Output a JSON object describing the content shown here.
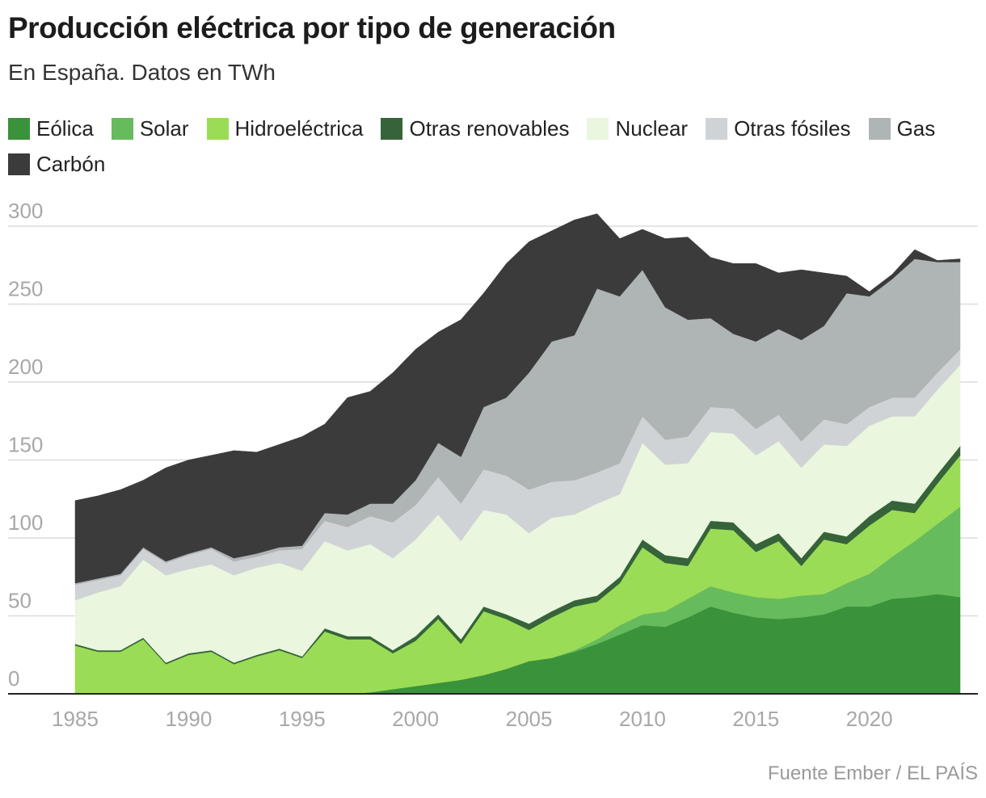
{
  "chart_data": {
    "type": "stacked-area",
    "title": "Producción eléctrica por tipo de generación",
    "subtitle": "En España. Datos en TWh",
    "source": "Fuente Ember / EL PAÍS",
    "x": [
      1985,
      1986,
      1987,
      1988,
      1989,
      1990,
      1991,
      1992,
      1993,
      1994,
      1995,
      1996,
      1997,
      1998,
      1999,
      2000,
      2001,
      2002,
      2003,
      2004,
      2005,
      2006,
      2007,
      2008,
      2009,
      2010,
      2011,
      2012,
      2013,
      2014,
      2015,
      2016,
      2017,
      2018,
      2019,
      2020,
      2021,
      2022,
      2023,
      2024
    ],
    "xlim": [
      1985,
      2024
    ],
    "xticks": [
      1985,
      1990,
      1995,
      2000,
      2005,
      2010,
      2015,
      2020
    ],
    "ylim": [
      0,
      300
    ],
    "yticks": [
      0,
      50,
      100,
      150,
      200,
      250,
      300
    ],
    "grid": true,
    "series": [
      {
        "name": "Eólica",
        "color": "#3a923a",
        "values": [
          0,
          0,
          0,
          0,
          0,
          0,
          0,
          0,
          0,
          0,
          0,
          0,
          0,
          1,
          3,
          5,
          7,
          9,
          12,
          16,
          21,
          23,
          27,
          32,
          38,
          44,
          43,
          49,
          56,
          52,
          49,
          48,
          49,
          51,
          56,
          56,
          61,
          62,
          64,
          62
        ]
      },
      {
        "name": "Solar",
        "color": "#66bb5d",
        "values": [
          0,
          0,
          0,
          0,
          0,
          0,
          0,
          0,
          0,
          0,
          0,
          0,
          0,
          0,
          0,
          0,
          0,
          0,
          0,
          0,
          0,
          0,
          1,
          3,
          6,
          7,
          10,
          12,
          13,
          13,
          13,
          13,
          14,
          13,
          15,
          21,
          27,
          36,
          45,
          58
        ]
      },
      {
        "name": "Hidroeléctrica",
        "color": "#9bdc56",
        "values": [
          31,
          27,
          27,
          35,
          19,
          25,
          27,
          19,
          24,
          28,
          23,
          40,
          35,
          34,
          23,
          29,
          41,
          23,
          41,
          32,
          20,
          26,
          28,
          24,
          27,
          43,
          31,
          21,
          37,
          40,
          29,
          37,
          19,
          35,
          25,
          31,
          30,
          18,
          26,
          33
        ]
      },
      {
        "name": "Otras renovables",
        "color": "#36633a",
        "values": [
          1,
          1,
          1,
          1,
          1,
          1,
          1,
          1,
          1,
          1,
          1,
          2,
          2,
          2,
          2,
          3,
          3,
          3,
          3,
          3,
          4,
          4,
          4,
          4,
          4,
          5,
          5,
          5,
          5,
          5,
          5,
          5,
          5,
          5,
          5,
          6,
          6,
          6,
          6,
          6
        ]
      },
      {
        "name": "Nuclear",
        "color": "#eaf6de",
        "values": [
          28,
          37,
          41,
          50,
          56,
          54,
          55,
          56,
          56,
          55,
          55,
          56,
          55,
          59,
          59,
          62,
          64,
          63,
          62,
          64,
          58,
          60,
          55,
          59,
          53,
          62,
          58,
          61,
          57,
          57,
          57,
          59,
          58,
          56,
          58,
          58,
          54,
          56,
          54,
          52
        ]
      },
      {
        "name": "Otras fósiles",
        "color": "#d0d3d6",
        "values": [
          10,
          8,
          7,
          7,
          8,
          9,
          10,
          9,
          7,
          8,
          14,
          13,
          15,
          18,
          23,
          22,
          24,
          24,
          26,
          25,
          28,
          23,
          22,
          20,
          20,
          17,
          16,
          17,
          16,
          16,
          17,
          17,
          17,
          16,
          14,
          12,
          12,
          12,
          11,
          10
        ]
      },
      {
        "name": "Gas",
        "color": "#afb4b5",
        "values": [
          1,
          1,
          1,
          1,
          1,
          1,
          1,
          2,
          2,
          2,
          2,
          5,
          8,
          8,
          12,
          16,
          22,
          30,
          40,
          50,
          75,
          90,
          93,
          118,
          107,
          94,
          85,
          75,
          57,
          48,
          56,
          55,
          65,
          60,
          84,
          71,
          76,
          89,
          71,
          56
        ]
      },
      {
        "name": "Carbón",
        "color": "#3b3b3b",
        "values": [
          53,
          53,
          54,
          43,
          60,
          60,
          59,
          69,
          65,
          66,
          70,
          57,
          75,
          72,
          84,
          84,
          71,
          88,
          73,
          86,
          84,
          71,
          74,
          48,
          37,
          26,
          44,
          53,
          39,
          45,
          50,
          36,
          45,
          34,
          11,
          3,
          3,
          6,
          1,
          2
        ]
      }
    ]
  }
}
